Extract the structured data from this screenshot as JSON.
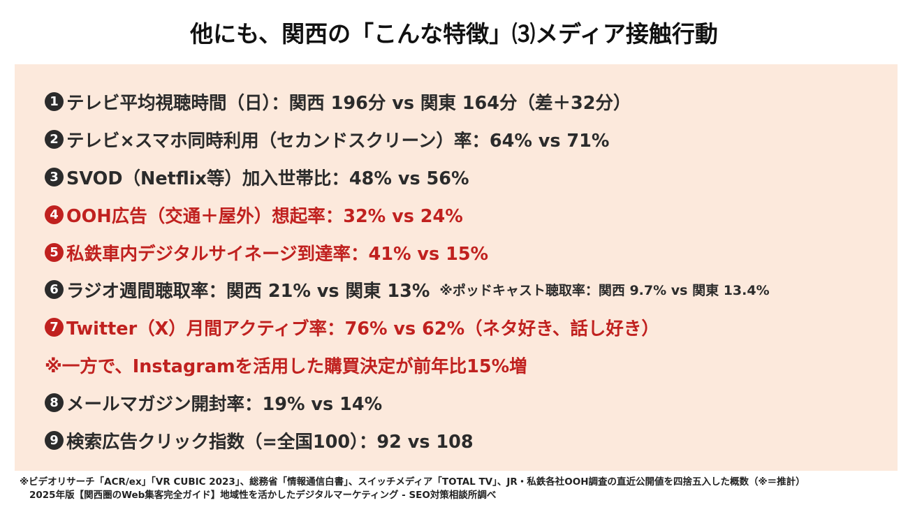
{
  "title": "他にも、関西の「こんな特徴」⑶メディア接触行動",
  "items": [
    {
      "num": "1",
      "text": "テレビ平均視聴時間（日）：関西 196分 vs 関東 164分（差＋32分）"
    },
    {
      "num": "2",
      "text": "テレビ×スマホ同時利用（セカンドスクリーン）率：64% vs 71%"
    },
    {
      "num": "3",
      "text": "SVOD（Netflix等）加入世帯比：48% vs 56%"
    },
    {
      "num": "4",
      "text": "OOH広告（交通＋屋外）想起率：32% vs 24%"
    },
    {
      "num": "5",
      "text": "私鉄車内デジタルサイネージ到達率：41% vs 15%"
    },
    {
      "num": "6",
      "text": "ラジオ週間聴取率：関西 21% vs 関東 13%",
      "note": "※ポッドキャスト聴取率：関西 9.7% vs 関東 13.4%"
    },
    {
      "num": "7",
      "text": "Twitter（X）月間アクティブ率：76% vs 62%（ネタ好き、話し好き）"
    },
    {
      "text": "※一方で、Instagramを活用した購買決定が前年比15%増"
    },
    {
      "num": "8",
      "text": "メールマガジン開封率：19% vs 14%"
    },
    {
      "num": "9",
      "text": "検索広告クリック指数（=全国100）：92 vs 108"
    }
  ],
  "footnote": {
    "line1": "※ビデオリサーチ「ACR/ex」「VR CUBIC 2023」、総務省「情報通信白書」、スイッチメディア「TOTAL TV」、JR・私鉄各社OOH調査の直近公開値を四捨五入した概数（※＝推計）",
    "line2": "2025年版【関西圏のWeb集客完全ガイド】地域性を活かしたデジタルマーケティング - SEO対策相談所調べ"
  },
  "colors": {
    "panel_bg": "#fce9dc",
    "text_dark": "#2b2b2b",
    "highlight_red": "#c0211f"
  }
}
